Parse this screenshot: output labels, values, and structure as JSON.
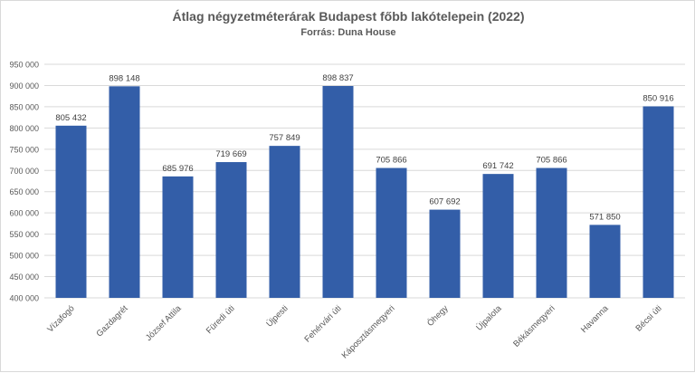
{
  "chart_data": {
    "type": "bar",
    "title": "Átlag négyzetméterárak Budapest főbb lakótelepein (2022)",
    "subtitle": "Forrás: Duna House",
    "categories": [
      "Vízafogó",
      "Gazdagrét",
      "József Attila",
      "Füredi úti",
      "Újpesti",
      "Fehérvári úti",
      "Káposztásmegyeri",
      "Óhegy",
      "Újpalota",
      "Békásmegyeri",
      "Havanna",
      "Bécsi úti"
    ],
    "values": [
      805432,
      898148,
      685976,
      719669,
      757849,
      898837,
      705866,
      607692,
      691742,
      705866,
      571850,
      850916
    ],
    "data_labels": [
      "805 432",
      "898 148",
      "685 976",
      "719 669",
      "757 849",
      "898 837",
      "705 866",
      "607 692",
      "691 742",
      "705 866",
      "571 850",
      "850 916"
    ],
    "ylim": [
      400000,
      950000
    ],
    "yticks": [
      400000,
      450000,
      500000,
      550000,
      600000,
      650000,
      700000,
      750000,
      800000,
      850000,
      900000,
      950000
    ],
    "ytick_labels": [
      "400 000",
      "450 000",
      "500 000",
      "550 000",
      "600 000",
      "650 000",
      "700 000",
      "750 000",
      "800 000",
      "850 000",
      "900 000",
      "950 000"
    ],
    "grid": true,
    "legend": "none",
    "bar_color": "#335ea8"
  }
}
